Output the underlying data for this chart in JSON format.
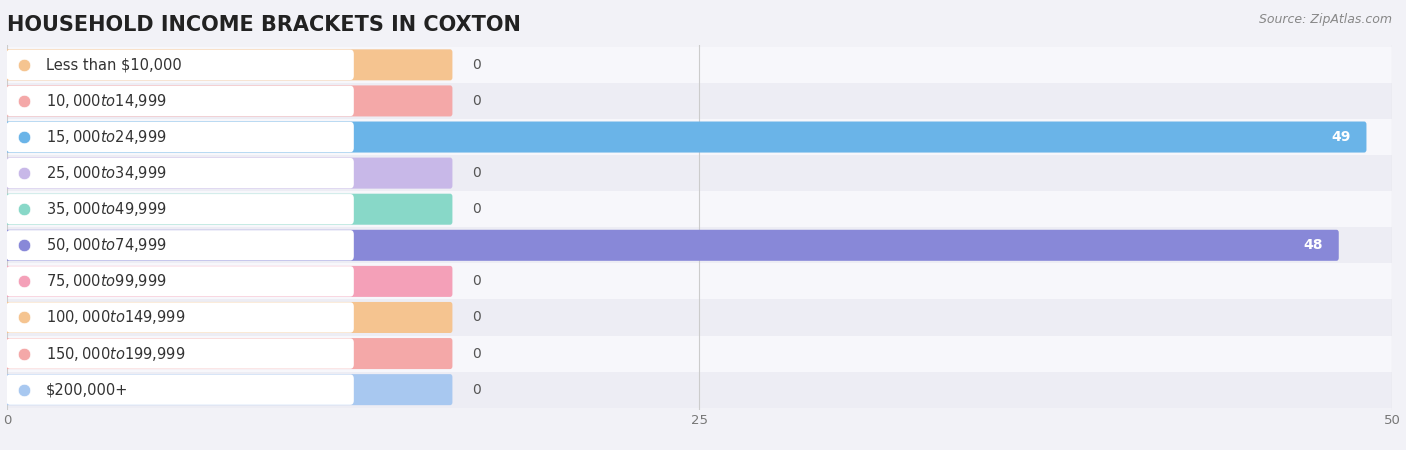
{
  "title": "HOUSEHOLD INCOME BRACKETS IN COXTON",
  "source_text": "Source: ZipAtlas.com",
  "categories": [
    "Less than $10,000",
    "$10,000 to $14,999",
    "$15,000 to $24,999",
    "$25,000 to $34,999",
    "$35,000 to $49,999",
    "$50,000 to $74,999",
    "$75,000 to $99,999",
    "$100,000 to $149,999",
    "$150,000 to $199,999",
    "$200,000+"
  ],
  "values": [
    0,
    0,
    49,
    0,
    0,
    48,
    0,
    0,
    0,
    0
  ],
  "bar_colors": [
    "#f5c490",
    "#f4a8a8",
    "#6ab4e8",
    "#c8b8e8",
    "#88d8c8",
    "#8888d8",
    "#f4a0b8",
    "#f5c490",
    "#f4a8a8",
    "#a8c8f0"
  ],
  "row_colors": [
    "#f7f7fb",
    "#ededf4"
  ],
  "background_color": "#f2f2f7",
  "xlim": [
    0,
    50
  ],
  "xticks": [
    0,
    25,
    50
  ],
  "title_fontsize": 15,
  "label_fontsize": 10.5,
  "value_fontsize": 10,
  "source_fontsize": 9,
  "fig_width": 14.06,
  "fig_height": 4.5
}
